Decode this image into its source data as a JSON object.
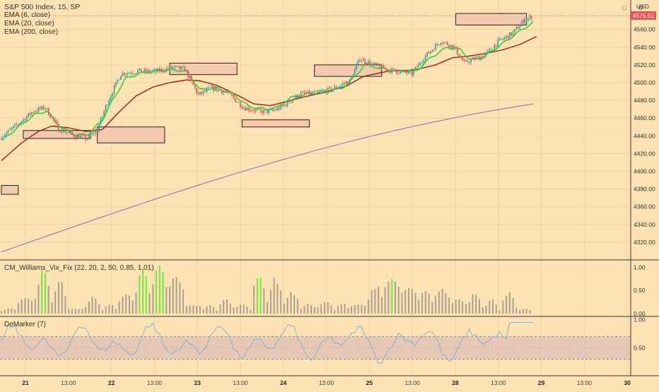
{
  "header": {
    "title": "S&P 500 Index, 15, SP",
    "indicators": [
      "EMA (6, close)",
      "EMA (20, close)",
      "EMA (200, close)"
    ],
    "currency": "USD",
    "last_price": "4575.51",
    "controls": {
      "maximize": "□",
      "settings": "⚙"
    }
  },
  "colors": {
    "background": "#fde2b3",
    "up": "#26a69a",
    "down": "#ef5350",
    "ema6": "#32d22c",
    "ema20": "#a11d0c",
    "ema200": "#7b6fc4",
    "vix_high": "#66ee33",
    "vix_normal": "#a59d90",
    "demarker": "#7fb3d5",
    "band": "#d9b8b4",
    "zone_fill": "#f5c9ad",
    "price_label": "#ef5350"
  },
  "chart_data": [
    {
      "type": "candlestick",
      "title": "S&P 500 Index, 15, SP",
      "ylim": [
        4300,
        4590
      ],
      "y_ticks": [
        4320,
        4340,
        4360,
        4380,
        4400,
        4420,
        4440,
        4460,
        4480,
        4500,
        4520,
        4540,
        4560
      ],
      "x_ticks": [
        "21",
        "13:00",
        "22",
        "13:00",
        "23",
        "13:00",
        "24",
        "13:00",
        "25",
        "13:00",
        "28",
        "13:00",
        "29",
        "13:00",
        "30"
      ],
      "series": [
        {
          "name": "EMA (6, close)"
        },
        {
          "name": "EMA (20, close)"
        },
        {
          "name": "EMA (200, close)"
        }
      ],
      "anchors": {
        "open": [
          [
            0,
            4437
          ],
          [
            10,
            4452
          ],
          [
            20,
            4468
          ],
          [
            27,
            4472
          ],
          [
            35,
            4448
          ],
          [
            45,
            4440
          ],
          [
            52,
            4437
          ],
          [
            58,
            4447
          ],
          [
            64,
            4478
          ],
          [
            72,
            4510
          ],
          [
            82,
            4513
          ],
          [
            92,
            4512
          ],
          [
            102,
            4517
          ],
          [
            110,
            4515
          ],
          [
            118,
            4486
          ],
          [
            126,
            4494
          ],
          [
            135,
            4489
          ],
          [
            145,
            4472
          ],
          [
            155,
            4467
          ],
          [
            162,
            4468
          ],
          [
            168,
            4473
          ],
          [
            178,
            4487
          ],
          [
            188,
            4488
          ],
          [
            198,
            4493
          ],
          [
            208,
            4502
          ],
          [
            214,
            4527
          ],
          [
            222,
            4520
          ],
          [
            232,
            4514
          ],
          [
            245,
            4510
          ],
          [
            252,
            4528
          ],
          [
            262,
            4547
          ],
          [
            270,
            4540
          ],
          [
            276,
            4522
          ],
          [
            282,
            4527
          ],
          [
            288,
            4530
          ],
          [
            296,
            4546
          ],
          [
            305,
            4556
          ],
          [
            312,
            4571
          ],
          [
            316,
            4574
          ]
        ],
        "ema6": [
          [
            2,
            4437
          ],
          [
            10,
            4450
          ],
          [
            20,
            4464
          ],
          [
            27,
            4468
          ],
          [
            35,
            4450
          ],
          [
            45,
            4440
          ],
          [
            52,
            4442
          ],
          [
            60,
            4458
          ],
          [
            66,
            4480
          ],
          [
            74,
            4505
          ],
          [
            84,
            4511
          ],
          [
            94,
            4514
          ],
          [
            104,
            4514
          ],
          [
            110,
            4513
          ],
          [
            118,
            4492
          ],
          [
            128,
            4494
          ],
          [
            137,
            4488
          ],
          [
            147,
            4473
          ],
          [
            157,
            4470
          ],
          [
            164,
            4472
          ],
          [
            172,
            4483
          ],
          [
            182,
            4487
          ],
          [
            192,
            4490
          ],
          [
            202,
            4493
          ],
          [
            210,
            4506
          ],
          [
            216,
            4521
          ],
          [
            225,
            4516
          ],
          [
            235,
            4513
          ],
          [
            247,
            4514
          ],
          [
            255,
            4528
          ],
          [
            265,
            4540
          ],
          [
            273,
            4537
          ],
          [
            279,
            4525
          ],
          [
            285,
            4528
          ],
          [
            292,
            4536
          ],
          [
            300,
            4547
          ],
          [
            308,
            4558
          ],
          [
            316,
            4568
          ]
        ],
        "ema20": [
          [
            0,
            4412
          ],
          [
            12,
            4432
          ],
          [
            22,
            4445
          ],
          [
            30,
            4451
          ],
          [
            40,
            4449
          ],
          [
            50,
            4445
          ],
          [
            60,
            4447
          ],
          [
            70,
            4467
          ],
          [
            80,
            4485
          ],
          [
            90,
            4495
          ],
          [
            100,
            4500
          ],
          [
            110,
            4503
          ],
          [
            118,
            4502
          ],
          [
            128,
            4497
          ],
          [
            140,
            4486
          ],
          [
            150,
            4476
          ],
          [
            160,
            4474
          ],
          [
            170,
            4479
          ],
          [
            180,
            4484
          ],
          [
            192,
            4489
          ],
          [
            205,
            4496
          ],
          [
            215,
            4507
          ],
          [
            230,
            4513
          ],
          [
            245,
            4514
          ],
          [
            258,
            4520
          ],
          [
            268,
            4528
          ],
          [
            278,
            4530
          ],
          [
            288,
            4533
          ],
          [
            298,
            4537
          ],
          [
            308,
            4543
          ],
          [
            318,
            4552
          ]
        ]
      },
      "ema200_range": [
        4309,
        4476
      ],
      "bars": 319,
      "last_price": "4575.51",
      "grid": true,
      "zones": [
        {
          "x0": 0,
          "x1": 10,
          "y0": 4374,
          "y1": 4384
        },
        {
          "x0": 13,
          "x1": 53,
          "y0": 4437,
          "y1": 4446
        },
        {
          "x0": 57,
          "x1": 97,
          "y0": 4432,
          "y1": 4450
        },
        {
          "x0": 100,
          "x1": 140,
          "y0": 4509,
          "y1": 4522
        },
        {
          "x0": 143,
          "x1": 183,
          "y0": 4450,
          "y1": 4458
        },
        {
          "x0": 186,
          "x1": 226,
          "y0": 4507,
          "y1": 4520
        },
        {
          "x0": 270,
          "x1": 312,
          "y0": 4565,
          "y1": 4578
        }
      ]
    },
    {
      "type": "bar",
      "title": "CM_Williams_Vix_Fix (22, 20, 2, 50, 0.85, 1.01)",
      "ylim": [
        0,
        1.05
      ],
      "y_ticks": [
        "0.00",
        "0.50",
        "1.00"
      ],
      "pattern": [
        [
          0.05,
          0.12,
          false
        ],
        [
          0.22,
          0.35,
          true
        ],
        [
          0.28,
          0.92,
          true
        ],
        [
          0.18,
          0.7,
          false
        ],
        [
          0.1,
          0.1,
          false
        ],
        [
          0.1,
          0.35,
          false
        ],
        [
          0.05,
          0.2,
          false
        ],
        [
          0.2,
          0.45,
          false
        ],
        [
          0.25,
          0.92,
          true
        ],
        [
          0.45,
          1.02,
          true
        ],
        [
          0.45,
          0.8,
          false
        ],
        [
          0.15,
          0.18,
          false
        ],
        [
          0.05,
          0.18,
          false
        ],
        [
          0.12,
          0.3,
          false
        ],
        [
          0.08,
          0.22,
          false
        ],
        [
          0.3,
          0.8,
          true
        ],
        [
          0.25,
          0.75,
          false
        ],
        [
          0.2,
          0.45,
          false
        ],
        [
          0.1,
          0.2,
          false
        ],
        [
          0.12,
          0.25,
          false
        ],
        [
          0.05,
          0.22,
          false
        ],
        [
          0.15,
          0.2,
          false
        ],
        [
          0.2,
          0.62,
          false
        ],
        [
          0.5,
          0.75,
          true
        ],
        [
          0.4,
          0.55,
          false
        ],
        [
          0.2,
          0.48,
          false
        ],
        [
          0.3,
          0.52,
          false
        ],
        [
          0.18,
          0.32,
          false
        ],
        [
          0.1,
          0.48,
          false
        ],
        [
          0.05,
          0.3,
          false
        ],
        [
          0.12,
          0.45,
          false
        ],
        [
          0.05,
          0.1,
          false
        ]
      ],
      "series": [
        {
          "name": "Vix Fix"
        }
      ]
    },
    {
      "type": "line",
      "title": "DeMarker (7)",
      "ylim": [
        0.18,
        1.02
      ],
      "y_ticks": [
        "0.50",
        "1.00"
      ],
      "band": [
        0.3,
        0.7
      ],
      "range": [
        0.22,
        0.96
      ],
      "series": [
        {
          "name": "DeMarker"
        }
      ]
    }
  ],
  "indicators": {
    "vix_title": "CM_Williams_Vix_Fix (22, 20, 2, 50, 0.85, 1.01)",
    "demarker_title": "DeMarker (7)"
  }
}
